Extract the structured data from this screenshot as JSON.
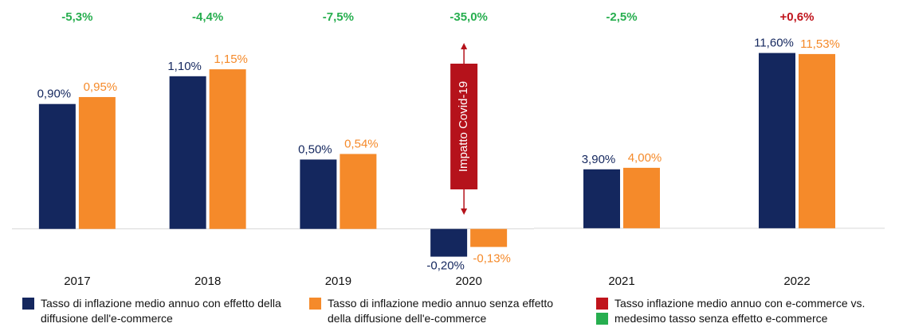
{
  "chart_data": [
    {
      "type": "bar",
      "categories": [
        "2017",
        "2018",
        "2019",
        "2020"
      ],
      "series": [
        {
          "name": "Tasso di inflazione medio annuo con effetto della diffusione dell'e-commerce",
          "color": "#14275e",
          "values": [
            0.9,
            1.1,
            0.5,
            -0.2
          ],
          "value_labels": [
            "0,90%",
            "1,10%",
            "0,50%",
            "-0,20%"
          ]
        },
        {
          "name": "Tasso di inflazione medio annuo senza effetto della diffusione dell'e-commerce",
          "color": "#f58a2a",
          "values": [
            0.95,
            1.15,
            0.54,
            -0.13
          ],
          "value_labels": [
            "0,95%",
            "1,15%",
            "0,54%",
            "-0,13%"
          ]
        }
      ],
      "change_labels": [
        "-5,3%",
        "-4,4%",
        "-7,5%",
        "-35,0%"
      ],
      "change_colors": [
        "#27ae4f",
        "#27ae4f",
        "#27ae4f",
        "#27ae4f"
      ],
      "annotation": "Impatto Covid-19",
      "annotation_color": "#b5121b",
      "ylim": [
        -0.3,
        1.42
      ]
    },
    {
      "type": "bar",
      "categories": [
        "2021",
        "2022"
      ],
      "series": [
        {
          "name": "Tasso di inflazione medio annuo con effetto della diffusione dell'e-commerce",
          "color": "#14275e",
          "values": [
            3.9,
            11.6
          ],
          "value_labels": [
            "3,90%",
            "11,60%"
          ]
        },
        {
          "name": "Tasso di inflazione medio annuo senza effetto della diffusione dell'e-commerce",
          "color": "#f58a2a",
          "values": [
            4.0,
            11.53
          ],
          "value_labels": [
            "4,00%",
            "11,53%"
          ]
        }
      ],
      "change_labels": [
        "-2,5%",
        "+0,6%"
      ],
      "change_colors": [
        "#27ae4f",
        "#c0141c"
      ],
      "ylim": [
        -2.8,
        13
      ]
    }
  ],
  "legend_extra": [
    {
      "label": "Tasso inflazione medio annuo con e-commerce vs.",
      "color": "#c0141c"
    },
    {
      "label": "medesimo tasso senza effetto e-commerce",
      "color": "#27ae4f"
    }
  ]
}
